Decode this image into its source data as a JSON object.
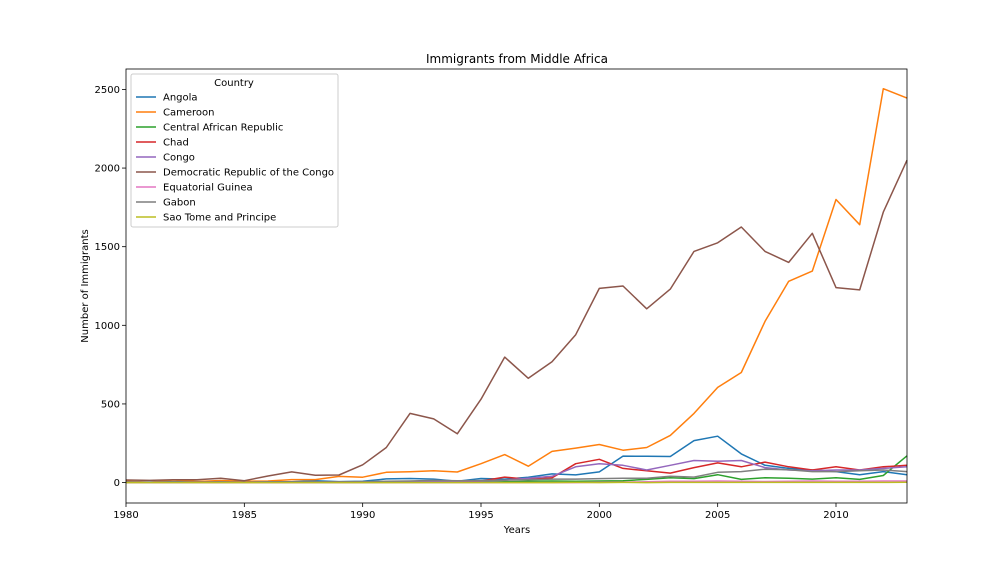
{
  "chart_data": {
    "type": "line",
    "title": "Immigrants from Middle Africa",
    "xlabel": "Years",
    "ylabel": "Number of Immigrants",
    "xlim": [
      1980,
      2013
    ],
    "ylim": [
      -130,
      2630
    ],
    "xticks": [
      1980,
      1985,
      1990,
      1995,
      2000,
      2005,
      2010
    ],
    "yticks": [
      0,
      500,
      1000,
      1500,
      2000,
      2500
    ],
    "grid": false,
    "legend": {
      "title": "Country",
      "placement": "top-left"
    },
    "x": [
      1980,
      1981,
      1982,
      1983,
      1984,
      1985,
      1986,
      1987,
      1988,
      1989,
      1990,
      1991,
      1992,
      1993,
      1994,
      1995,
      1996,
      1997,
      1998,
      1999,
      2000,
      2001,
      2002,
      2003,
      2004,
      2005,
      2006,
      2007,
      2008,
      2009,
      2010,
      2011,
      2012,
      2013
    ],
    "series": [
      {
        "name": "Angola",
        "color": "#1f77b4",
        "values": [
          1,
          3,
          6,
          6,
          4,
          3,
          5,
          5,
          11,
          6,
          8,
          23,
          26,
          22,
          8,
          26,
          22,
          34,
          55,
          49,
          68,
          168,
          167,
          166,
          267,
          295,
          182,
          110,
          90,
          80,
          70,
          50,
          70,
          50
        ]
      },
      {
        "name": "Cameroon",
        "color": "#ff7f0e",
        "values": [
          9,
          2,
          16,
          7,
          13,
          8,
          10,
          19,
          19,
          39,
          34,
          65,
          69,
          75,
          67,
          120,
          178,
          104,
          198,
          219,
          242,
          206,
          223,
          300,
          440,
          605,
          700,
          1025,
          1280,
          1345,
          1800,
          1640,
          2505,
          2445
        ]
      },
      {
        "name": "Central African Republic",
        "color": "#2ca02c",
        "values": [
          0,
          0,
          0,
          0,
          0,
          0,
          0,
          0,
          0,
          0,
          0,
          1,
          3,
          2,
          2,
          3,
          5,
          8,
          10,
          8,
          10,
          12,
          20,
          30,
          25,
          50,
          20,
          30,
          28,
          22,
          30,
          20,
          45,
          170
        ]
      },
      {
        "name": "Chad",
        "color": "#d62728",
        "values": [
          0,
          0,
          0,
          0,
          0,
          0,
          0,
          0,
          0,
          0,
          1,
          2,
          2,
          3,
          5,
          10,
          35,
          20,
          30,
          120,
          148,
          90,
          75,
          60,
          95,
          125,
          100,
          130,
          100,
          80,
          100,
          80,
          100,
          110
        ]
      },
      {
        "name": "Congo",
        "color": "#9467bd",
        "values": [
          0,
          0,
          0,
          0,
          0,
          0,
          0,
          0,
          0,
          0,
          0,
          3,
          5,
          5,
          8,
          10,
          15,
          28,
          40,
          100,
          120,
          110,
          80,
          110,
          140,
          135,
          140,
          95,
          80,
          75,
          80,
          80,
          90,
          100
        ]
      },
      {
        "name": "Democratic Republic of the Congo",
        "color": "#8c564b",
        "values": [
          16,
          14,
          18,
          18,
          28,
          12,
          42,
          68,
          47,
          48,
          113,
          223,
          440,
          405,
          310,
          530,
          798,
          663,
          768,
          940,
          1235,
          1250,
          1105,
          1230,
          1470,
          1525,
          1625,
          1470,
          1400,
          1585,
          1240,
          1225,
          1720,
          2050
        ]
      },
      {
        "name": "Equatorial Guinea",
        "color": "#e377c2",
        "values": [
          0,
          0,
          0,
          0,
          0,
          0,
          0,
          0,
          0,
          0,
          0,
          0,
          0,
          0,
          0,
          0,
          0,
          0,
          0,
          0,
          2,
          3,
          5,
          8,
          8,
          10,
          8,
          7,
          8,
          10,
          8,
          8,
          10,
          10
        ]
      },
      {
        "name": "Gabon",
        "color": "#7f7f7f",
        "values": [
          4,
          3,
          5,
          3,
          4,
          2,
          5,
          4,
          4,
          5,
          6,
          8,
          10,
          14,
          12,
          13,
          15,
          18,
          22,
          22,
          25,
          28,
          28,
          40,
          35,
          65,
          70,
          85,
          82,
          70,
          70,
          75,
          80,
          70
        ]
      },
      {
        "name": "Sao Tome and Principe",
        "color": "#bcbd22",
        "values": [
          0,
          0,
          0,
          0,
          0,
          0,
          0,
          0,
          0,
          0,
          0,
          0,
          0,
          0,
          0,
          0,
          0,
          0,
          0,
          1,
          0,
          1,
          0,
          1,
          1,
          1,
          1,
          1,
          1,
          1,
          1,
          1,
          1,
          2
        ]
      }
    ]
  }
}
